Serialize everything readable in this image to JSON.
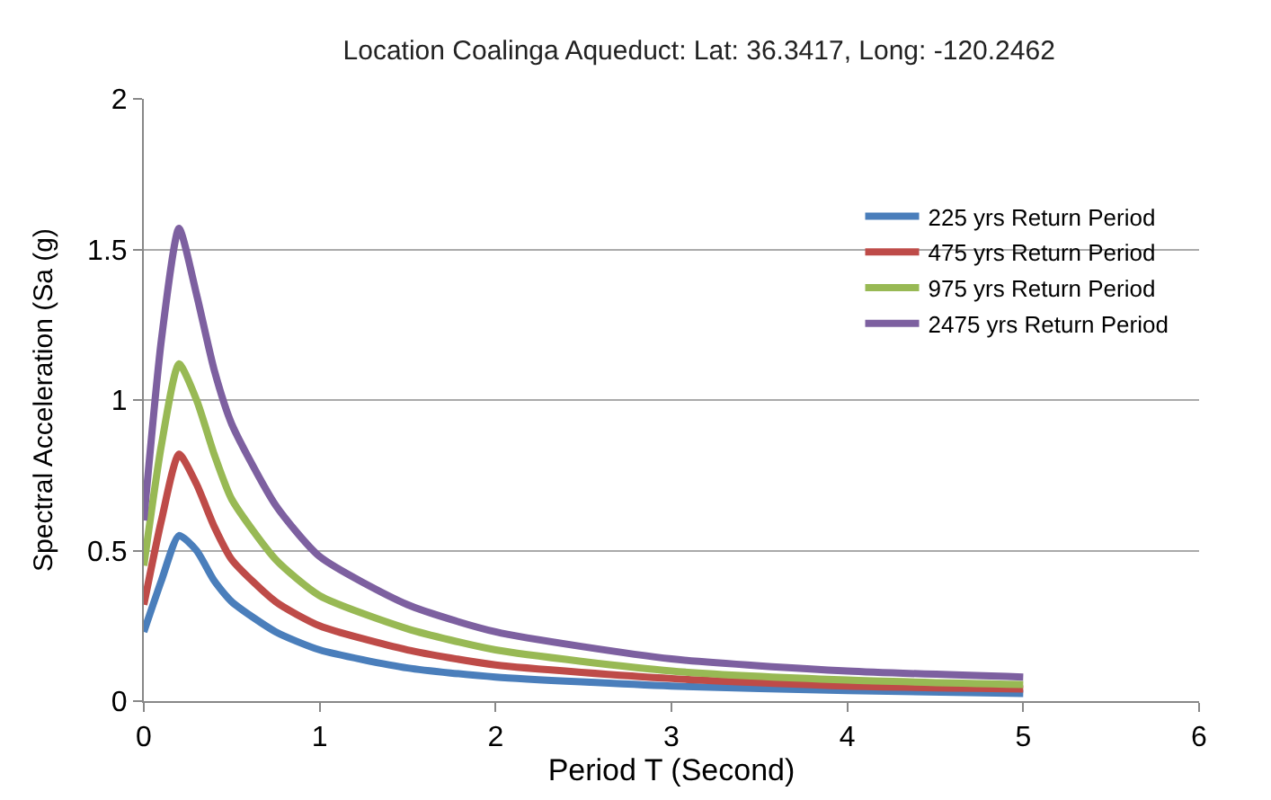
{
  "chart_data": {
    "type": "line",
    "title": "Location Coalinga Aqueduct: Lat: 36.3417, Long: -120.2462",
    "xlabel": "Period T (Second)",
    "ylabel": "Spectral Acceleration (Sa (g)",
    "x": [
      0,
      0.1,
      0.2,
      0.3,
      0.4,
      0.5,
      0.75,
      1,
      1.5,
      2,
      3,
      4,
      5
    ],
    "series": [
      {
        "name": "225 yrs Return Period",
        "color": "#4a7ebb",
        "values": [
          0.23,
          0.4,
          0.55,
          0.5,
          0.4,
          0.33,
          0.23,
          0.17,
          0.11,
          0.08,
          0.05,
          0.035,
          0.025
        ]
      },
      {
        "name": "475 yrs Return Period",
        "color": "#be4b48",
        "values": [
          0.32,
          0.6,
          0.82,
          0.72,
          0.58,
          0.47,
          0.33,
          0.25,
          0.17,
          0.12,
          0.075,
          0.05,
          0.04
        ]
      },
      {
        "name": "975 yrs Return Period",
        "color": "#98b954",
        "values": [
          0.45,
          0.85,
          1.12,
          1.0,
          0.82,
          0.67,
          0.47,
          0.35,
          0.24,
          0.17,
          0.1,
          0.07,
          0.055
        ]
      },
      {
        "name": "2475 yrs Return Period",
        "color": "#7d60a0",
        "values": [
          0.6,
          1.2,
          1.57,
          1.35,
          1.1,
          0.92,
          0.65,
          0.48,
          0.32,
          0.23,
          0.14,
          0.1,
          0.08
        ]
      }
    ],
    "xlim": [
      0,
      6
    ],
    "xticks": [
      0,
      1,
      2,
      3,
      4,
      5,
      6
    ],
    "ylim": [
      0,
      2
    ],
    "yticks": [
      0,
      0.5,
      1,
      1.5,
      2
    ],
    "grid": "y",
    "legend": "top right",
    "marker": "none",
    "line_style": "solid"
  }
}
